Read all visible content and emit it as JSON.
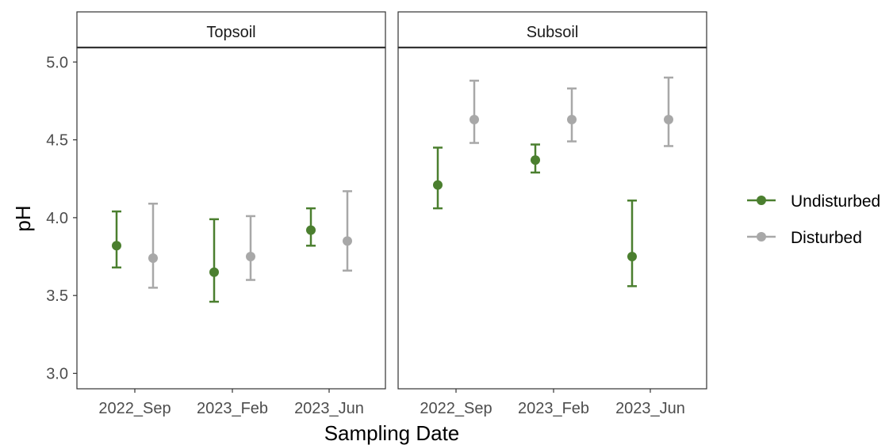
{
  "chart_data": {
    "type": "scatter",
    "subtype": "point-errorbar-facet",
    "xlabel": "Sampling Date",
    "ylabel": "pH",
    "ylim": [
      2.95,
      5.2
    ],
    "yticks": [
      "3.0",
      "3.5",
      "4.0",
      "4.5",
      "5.0"
    ],
    "categories": [
      "2022_Sep",
      "2023_Feb",
      "2023_Jun"
    ],
    "grid": false,
    "legend_position": "right",
    "legend": [
      {
        "name": "Undisturbed",
        "color": "#4b7f2f"
      },
      {
        "name": "Disturbed",
        "color": "#a8a8a8"
      }
    ],
    "panels": [
      {
        "title": "Topsoil",
        "series": [
          {
            "name": "Undisturbed",
            "color": "#4b7f2f",
            "points": [
              {
                "x": "2022_Sep",
                "y": 3.82,
                "ymin": 3.68,
                "ymax": 4.04
              },
              {
                "x": "2023_Feb",
                "y": 3.65,
                "ymin": 3.46,
                "ymax": 3.99
              },
              {
                "x": "2023_Jun",
                "y": 3.92,
                "ymin": 3.82,
                "ymax": 4.06
              }
            ]
          },
          {
            "name": "Disturbed",
            "color": "#a8a8a8",
            "points": [
              {
                "x": "2022_Sep",
                "y": 3.74,
                "ymin": 3.55,
                "ymax": 4.09
              },
              {
                "x": "2023_Feb",
                "y": 3.75,
                "ymin": 3.6,
                "ymax": 4.01
              },
              {
                "x": "2023_Jun",
                "y": 3.85,
                "ymin": 3.66,
                "ymax": 4.17
              }
            ]
          }
        ]
      },
      {
        "title": "Subsoil",
        "series": [
          {
            "name": "Undisturbed",
            "color": "#4b7f2f",
            "points": [
              {
                "x": "2022_Sep",
                "y": 4.21,
                "ymin": 4.06,
                "ymax": 4.45
              },
              {
                "x": "2023_Feb",
                "y": 4.37,
                "ymin": 4.29,
                "ymax": 4.47
              },
              {
                "x": "2023_Jun",
                "y": 3.75,
                "ymin": 3.56,
                "ymax": 4.11
              }
            ]
          },
          {
            "name": "Disturbed",
            "color": "#a8a8a8",
            "points": [
              {
                "x": "2022_Sep",
                "y": 4.63,
                "ymin": 4.48,
                "ymax": 4.88
              },
              {
                "x": "2023_Feb",
                "y": 4.63,
                "ymin": 4.49,
                "ymax": 4.83
              },
              {
                "x": "2023_Jun",
                "y": 4.63,
                "ymin": 4.46,
                "ymax": 4.9
              }
            ]
          }
        ]
      }
    ]
  }
}
